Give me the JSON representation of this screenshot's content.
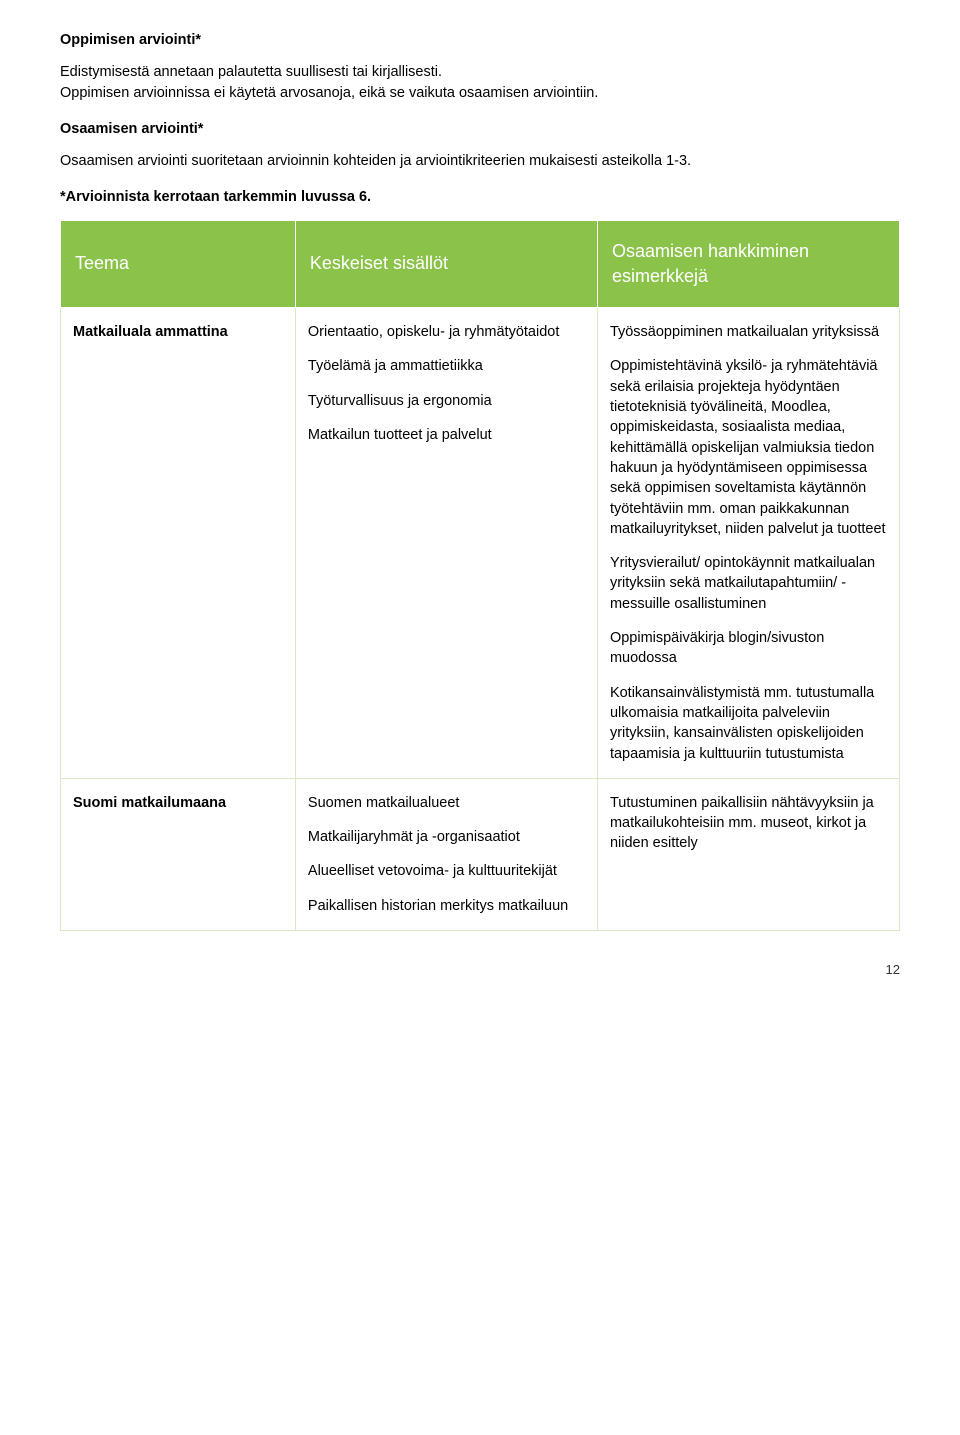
{
  "intro": {
    "h1": "Oppimisen arviointi*",
    "p1": "Edistymisestä annetaan palautetta suullisesti tai kirjallisesti.",
    "p2": "Oppimisen arvioinnissa ei käytetä arvosanoja, eikä se vaikuta osaamisen arviointiin.",
    "h2": "Osaamisen arviointi*",
    "p3": "Osaamisen arviointi suoritetaan arvioinnin kohteiden ja arviointikriteerien mukaisesti asteikolla 1-3.",
    "h3": "*Arvioinnista kerrotaan tarkemmin luvussa 6."
  },
  "table": {
    "headers": {
      "col1": "Teema",
      "col2": "Keskeiset sisällöt",
      "col3_line1": "Osaamisen hankkiminen",
      "col3_line2": "esimerkkejä"
    },
    "rows": [
      {
        "c1": "Matkailuala ammattina",
        "c2": [
          "Orientaatio, opiskelu- ja ryhmätyötaidot",
          "Työelämä ja ammattietiikka",
          "Työturvallisuus ja ergonomia",
          "Matkailun tuotteet ja palvelut"
        ],
        "c3": [
          "Työssäoppiminen matkailualan yrityksissä",
          "Oppimistehtävinä yksilö- ja ryhmätehtäviä sekä erilaisia projekteja hyödyntäen tietoteknisiä työvälineitä, Moodlea, oppimiskeidasta, sosiaalista mediaa, kehittämällä opiskelijan valmiuksia tiedon hakuun ja hyödyntämiseen oppimisessa sekä oppimisen soveltamista käytännön työtehtäviin mm. oman paikkakunnan matkailuyritykset, niiden palvelut ja tuotteet",
          "Yritysvierailut/ opintokäynnit matkailualan yrityksiin sekä matkailutapahtumiin/ - messuille osallistuminen",
          "Oppimispäiväkirja blogin/sivuston muodossa",
          "Kotikansainvälistymistä mm. tutustumalla ulkomaisia matkailijoita palveleviin yrityksiin, kansainvälisten opiskelijoiden tapaamisia ja kulttuuriin tutustumista"
        ]
      },
      {
        "c1": "Suomi matkailumaana",
        "c2": [
          "Suomen matkailualueet",
          "Matkailijaryhmät ja -organisaatiot",
          "Alueelliset vetovoima- ja kulttuuritekijät",
          "Paikallisen historian merkitys matkailuun"
        ],
        "c3": [
          "Tutustuminen paikallisiin nähtävyyksiin ja matkailukohteisiin mm. museot, kirkot ja niiden esittely"
        ]
      }
    ]
  },
  "page_number": "12",
  "colors": {
    "header_bg": "#8bc34a",
    "header_fg": "#ffffff",
    "cell_border": "#d9e9c4"
  }
}
